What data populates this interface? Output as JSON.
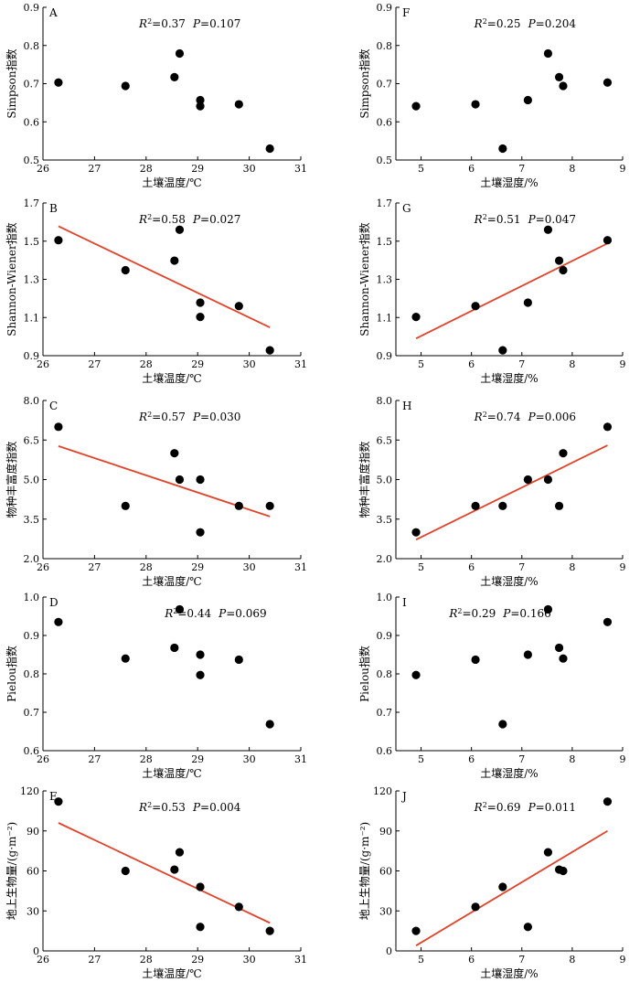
{
  "chart_data": [
    {
      "id": "A",
      "type": "scatter",
      "panel_label": "A",
      "xlabel": "土壤温度/℃",
      "ylabel": "Simpson指数",
      "xlim": [
        26,
        31
      ],
      "ylim": [
        0.5,
        0.9
      ],
      "x_ticks": [
        26,
        27,
        28,
        29,
        30,
        31
      ],
      "y_ticks": [
        0.5,
        0.6,
        0.7,
        0.8,
        0.9
      ],
      "y_tick_labels": [
        "0.5",
        "0.6",
        "0.7",
        "0.8",
        "0.9"
      ],
      "r2_label": "R",
      "r2_sup": "2",
      "r2_value": "=0.37",
      "p_label": "P",
      "p_value": "=0.107",
      "stat_position": "top-center",
      "points": [
        [
          26.3,
          0.703
        ],
        [
          27.6,
          0.694
        ],
        [
          28.55,
          0.717
        ],
        [
          28.65,
          0.779
        ],
        [
          29.05,
          0.657
        ],
        [
          29.05,
          0.641
        ],
        [
          29.8,
          0.646
        ],
        [
          30.4,
          0.53
        ]
      ],
      "fit_line": null
    },
    {
      "id": "F",
      "type": "scatter",
      "panel_label": "F",
      "xlabel": "土壤湿度/%",
      "ylabel": "Simpson指数",
      "xlim": [
        4.5,
        9
      ],
      "ylim": [
        0.5,
        0.9
      ],
      "x_ticks": [
        5,
        6,
        7,
        8,
        9
      ],
      "y_ticks": [
        0.5,
        0.6,
        0.7,
        0.8,
        0.9
      ],
      "y_tick_labels": [
        "0.5",
        "0.6",
        "0.7",
        "0.8",
        "0.9"
      ],
      "r2_label": "R",
      "r2_sup": "2",
      "r2_value": "=0.25",
      "p_label": "P",
      "p_value": "=0.204",
      "stat_position": "top-center",
      "points": [
        [
          4.9,
          0.641
        ],
        [
          6.08,
          0.646
        ],
        [
          6.62,
          0.53
        ],
        [
          7.12,
          0.657
        ],
        [
          7.52,
          0.779
        ],
        [
          7.74,
          0.717
        ],
        [
          7.82,
          0.694
        ],
        [
          8.7,
          0.703
        ]
      ],
      "fit_line": null
    },
    {
      "id": "B",
      "type": "scatter",
      "panel_label": "B",
      "xlabel": "土壤温度/℃",
      "ylabel": "Shannon-Wiener指数",
      "xlim": [
        26,
        31
      ],
      "ylim": [
        0.9,
        1.7
      ],
      "x_ticks": [
        26,
        27,
        28,
        29,
        30,
        31
      ],
      "y_ticks": [
        0.9,
        1.1,
        1.3,
        1.5,
        1.7
      ],
      "y_tick_labels": [
        "0.9",
        "1.1",
        "1.3",
        "1.5",
        "1.7"
      ],
      "r2_label": "R",
      "r2_sup": "2",
      "r2_value": "=0.58",
      "p_label": "P",
      "p_value": "=0.027",
      "stat_position": "top-center",
      "points": [
        [
          26.3,
          1.505
        ],
        [
          27.6,
          1.348
        ],
        [
          28.55,
          1.398
        ],
        [
          28.65,
          1.56
        ],
        [
          29.05,
          1.178
        ],
        [
          29.05,
          1.103
        ],
        [
          29.8,
          1.16
        ],
        [
          30.4,
          0.928
        ]
      ],
      "fit_line": [
        [
          26.3,
          1.578
        ],
        [
          30.4,
          1.048
        ]
      ]
    },
    {
      "id": "G",
      "type": "scatter",
      "panel_label": "G",
      "xlabel": "土壤湿度/%",
      "ylabel": "Shannon-Wiener指数",
      "xlim": [
        4.5,
        9
      ],
      "ylim": [
        0.9,
        1.7
      ],
      "x_ticks": [
        5,
        6,
        7,
        8,
        9
      ],
      "y_ticks": [
        0.9,
        1.1,
        1.3,
        1.5,
        1.7
      ],
      "y_tick_labels": [
        "0.9",
        "1.1",
        "1.3",
        "1.5",
        "1.7"
      ],
      "r2_label": "R",
      "r2_sup": "2",
      "r2_value": "=0.51",
      "p_label": "P",
      "p_value": "=0.047",
      "stat_position": "top-center",
      "points": [
        [
          4.9,
          1.103
        ],
        [
          6.08,
          1.16
        ],
        [
          6.62,
          0.928
        ],
        [
          7.12,
          1.178
        ],
        [
          7.52,
          1.56
        ],
        [
          7.74,
          1.398
        ],
        [
          7.82,
          1.348
        ],
        [
          8.7,
          1.505
        ]
      ],
      "fit_line": [
        [
          4.9,
          0.99
        ],
        [
          8.7,
          1.488
        ]
      ]
    },
    {
      "id": "C",
      "type": "scatter",
      "panel_label": "C",
      "xlabel": "土壤温度/℃",
      "ylabel": "物种丰富度指数",
      "xlim": [
        26,
        31
      ],
      "ylim": [
        2.0,
        8.0
      ],
      "x_ticks": [
        26,
        27,
        28,
        29,
        30,
        31
      ],
      "y_ticks": [
        2.0,
        3.5,
        5.0,
        6.5,
        8.0
      ],
      "y_tick_labels": [
        "2.0",
        "3.5",
        "5.0",
        "6.5",
        "8.0"
      ],
      "r2_label": "R",
      "r2_sup": "2",
      "r2_value": "=0.57",
      "p_label": "P",
      "p_value": "=0.030",
      "stat_position": "top-center",
      "points": [
        [
          26.3,
          7.0
        ],
        [
          27.6,
          4.0
        ],
        [
          28.55,
          6.0
        ],
        [
          28.65,
          5.0
        ],
        [
          29.05,
          5.0
        ],
        [
          29.05,
          3.0
        ],
        [
          29.8,
          4.0
        ],
        [
          30.4,
          4.0
        ]
      ],
      "fit_line": [
        [
          26.3,
          6.27
        ],
        [
          30.4,
          3.6
        ]
      ]
    },
    {
      "id": "H",
      "type": "scatter",
      "panel_label": "H",
      "xlabel": "土壤湿度/%",
      "ylabel": "物种丰富度指数",
      "xlim": [
        4.5,
        9
      ],
      "ylim": [
        2.0,
        8.0
      ],
      "x_ticks": [
        5,
        6,
        7,
        8,
        9
      ],
      "y_ticks": [
        2.0,
        3.5,
        5.0,
        6.5,
        8.0
      ],
      "y_tick_labels": [
        "2.0",
        "3.5",
        "5.0",
        "6.5",
        "8.0"
      ],
      "r2_label": "R",
      "r2_sup": "2",
      "r2_value": "=0.74",
      "p_label": "P",
      "p_value": "=0.006",
      "stat_position": "top-center",
      "points": [
        [
          4.9,
          3.0
        ],
        [
          6.08,
          4.0
        ],
        [
          6.62,
          4.0
        ],
        [
          7.12,
          5.0
        ],
        [
          7.52,
          5.0
        ],
        [
          7.74,
          4.0
        ],
        [
          7.82,
          6.0
        ],
        [
          8.7,
          7.0
        ]
      ],
      "fit_line": [
        [
          4.9,
          2.72
        ],
        [
          8.7,
          6.3
        ]
      ]
    },
    {
      "id": "D",
      "type": "scatter",
      "panel_label": "D",
      "xlabel": "土壤温度/℃",
      "ylabel": "Pielou指数",
      "xlim": [
        26,
        31
      ],
      "ylim": [
        0.6,
        1.0
      ],
      "x_ticks": [
        26,
        27,
        28,
        29,
        30,
        31
      ],
      "y_ticks": [
        0.6,
        0.7,
        0.8,
        0.9,
        1.0
      ],
      "y_tick_labels": [
        "0.6",
        "0.7",
        "0.8",
        "0.9",
        "1.0"
      ],
      "r2_label": "R",
      "r2_sup": "2",
      "r2_value": "=0.44",
      "p_label": "P",
      "p_value": "=0.069",
      "stat_position": "top-right",
      "points": [
        [
          26.3,
          0.935
        ],
        [
          27.6,
          0.84
        ],
        [
          28.55,
          0.868
        ],
        [
          28.65,
          0.968
        ],
        [
          29.05,
          0.85
        ],
        [
          29.05,
          0.797
        ],
        [
          29.8,
          0.837
        ],
        [
          30.4,
          0.669
        ]
      ],
      "fit_line": null
    },
    {
      "id": "I",
      "type": "scatter",
      "panel_label": "I",
      "xlabel": "土壤湿度/%",
      "ylabel": "Pielou指数",
      "xlim": [
        4.5,
        9
      ],
      "ylim": [
        0.6,
        1.0
      ],
      "x_ticks": [
        5,
        6,
        7,
        8,
        9
      ],
      "y_ticks": [
        0.6,
        0.7,
        0.8,
        0.9,
        1.0
      ],
      "y_tick_labels": [
        "0.6",
        "0.7",
        "0.8",
        "0.9",
        "1.0"
      ],
      "r2_label": "R",
      "r2_sup": "2",
      "r2_value": "=0.29",
      "p_label": "P",
      "p_value": "=0.166",
      "stat_position": "top-left",
      "points": [
        [
          4.9,
          0.797
        ],
        [
          6.08,
          0.837
        ],
        [
          6.62,
          0.669
        ],
        [
          7.12,
          0.85
        ],
        [
          7.52,
          0.968
        ],
        [
          7.74,
          0.868
        ],
        [
          7.82,
          0.84
        ],
        [
          8.7,
          0.935
        ]
      ],
      "fit_line": null
    },
    {
      "id": "E",
      "type": "scatter",
      "panel_label": "E",
      "xlabel": "土壤温度/℃",
      "ylabel": "地上生物量/(g·m⁻²)",
      "xlim": [
        26,
        31
      ],
      "ylim": [
        0,
        120
      ],
      "x_ticks": [
        26,
        27,
        28,
        29,
        30,
        31
      ],
      "y_ticks": [
        0,
        30,
        60,
        90,
        120
      ],
      "y_tick_labels": [
        "0",
        "30",
        "60",
        "90",
        "120"
      ],
      "r2_label": "R",
      "r2_sup": "2",
      "r2_value": "=0.53",
      "p_label": "P",
      "p_value": "=0.004",
      "stat_position": "top-center",
      "points": [
        [
          26.3,
          112
        ],
        [
          27.6,
          60
        ],
        [
          28.55,
          61
        ],
        [
          28.65,
          74
        ],
        [
          29.05,
          48
        ],
        [
          29.05,
          18
        ],
        [
          29.8,
          33
        ],
        [
          30.4,
          15
        ]
      ],
      "fit_line": [
        [
          26.3,
          96
        ],
        [
          30.4,
          21
        ]
      ]
    },
    {
      "id": "J",
      "type": "scatter",
      "panel_label": "J",
      "xlabel": "土壤湿度/%",
      "ylabel": "地上生物量/(g·m⁻²)",
      "xlim": [
        4.5,
        9
      ],
      "ylim": [
        0,
        120
      ],
      "x_ticks": [
        5,
        6,
        7,
        8,
        9
      ],
      "y_ticks": [
        0,
        30,
        60,
        90,
        120
      ],
      "y_tick_labels": [
        "0",
        "30",
        "60",
        "90",
        "120"
      ],
      "r2_label": "R",
      "r2_sup": "2",
      "r2_value": "=0.69",
      "p_label": "P",
      "p_value": "=0.011",
      "stat_position": "top-center",
      "points": [
        [
          4.9,
          15
        ],
        [
          6.08,
          33
        ],
        [
          6.62,
          48
        ],
        [
          7.12,
          18
        ],
        [
          7.52,
          74
        ],
        [
          7.74,
          61
        ],
        [
          7.82,
          60
        ],
        [
          8.7,
          112
        ]
      ],
      "fit_line": [
        [
          4.9,
          4
        ],
        [
          8.7,
          90
        ]
      ]
    }
  ],
  "colors": {
    "point": "#000000",
    "fit_line": "#e0432b",
    "axis": "#000000"
  }
}
